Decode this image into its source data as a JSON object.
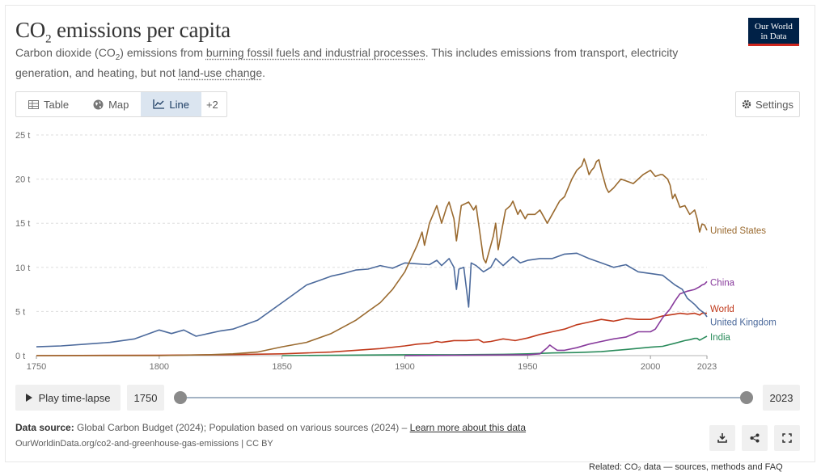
{
  "header": {
    "title_main": "CO",
    "title_sub": "2",
    "title_rest": " emissions per capita",
    "subtitle": {
      "p1": "Carbon dioxide (CO",
      "p1_sub": "2",
      "p1_end": ") emissions from ",
      "link1": "burning fossil fuels and industrial processes",
      "p2": ". This includes emissions from transport, electricity generation, and heating, but not ",
      "link2": "land-use change",
      "p3": "."
    },
    "logo_line1": "Our World",
    "logo_line2": "in Data"
  },
  "tabs": [
    {
      "label": "Table",
      "icon": "table-icon"
    },
    {
      "label": "Map",
      "icon": "globe-icon"
    },
    {
      "label": "Line",
      "icon": "line-chart-icon"
    },
    {
      "label": "+2",
      "icon": ""
    }
  ],
  "active_tab": "Line",
  "settings_label": "Settings",
  "timeline": {
    "play_label": "Play time-lapse",
    "start_year": "1750",
    "end_year": "2023"
  },
  "footer": {
    "source_label": "Data source:",
    "source_text": " Global Carbon Budget (2024); Population based on various sources (2024) – ",
    "learn_more": "Learn more about this data",
    "url": "OurWorldinData.org/co2-and-greenhouse-gas-emissions | CC BY",
    "related": "Related: CO₂ data — sources, methods and FAQ"
  },
  "colors": {
    "united_states": "#9a6a2f",
    "united_kingdom": "#4c6a9c",
    "china": "#883b9c",
    "world": "#c0391b",
    "india": "#2a8b5b",
    "grid": "#dddddd",
    "axis_text": "#6e6e6e"
  },
  "chart_data": {
    "type": "line",
    "title": "CO₂ emissions per capita",
    "ylabel": "",
    "xlabel": "",
    "xlim": [
      1750,
      2023
    ],
    "ylim": [
      0,
      25
    ],
    "x_ticks": [
      "1750",
      "1800",
      "1850",
      "1900",
      "1950",
      "2000",
      "2023"
    ],
    "y_ticks": [
      "0 t",
      "5 t",
      "10 t",
      "15 t",
      "20 t",
      "25 t"
    ],
    "y_tick_values": [
      0,
      5,
      10,
      15,
      20,
      25
    ],
    "grid": true,
    "legend": "line-end labels",
    "series": [
      {
        "name": "United States",
        "color_key": "united_states",
        "x": [
          1750,
          1800,
          1820,
          1830,
          1840,
          1850,
          1860,
          1870,
          1880,
          1885,
          1890,
          1895,
          1900,
          1905,
          1907,
          1908,
          1910,
          1913,
          1915,
          1917,
          1918,
          1920,
          1921,
          1923,
          1926,
          1928,
          1929,
          1930,
          1932,
          1933,
          1936,
          1937,
          1938,
          1941,
          1943,
          1944,
          1946,
          1947,
          1949,
          1950,
          1953,
          1955,
          1957,
          1958,
          1960,
          1963,
          1965,
          1968,
          1970,
          1972,
          1973,
          1974,
          1975,
          1976,
          1977,
          1978,
          1979,
          1980,
          1982,
          1983,
          1985,
          1988,
          1990,
          1993,
          1995,
          1997,
          2000,
          2002,
          2004,
          2005,
          2007,
          2008,
          2009,
          2010,
          2012,
          2014,
          2016,
          2018,
          2019,
          2020,
          2021,
          2022,
          2023
        ],
        "y": [
          0.0,
          0.0,
          0.1,
          0.2,
          0.4,
          1.0,
          1.5,
          2.5,
          4.0,
          5.0,
          6.0,
          7.5,
          9.5,
          12.5,
          14.0,
          12.5,
          15.0,
          17.0,
          15.0,
          16.8,
          17.4,
          15.5,
          13.0,
          17.0,
          17.4,
          16.5,
          17.0,
          15.0,
          11.0,
          10.5,
          13.5,
          15.0,
          12.0,
          16.5,
          17.0,
          17.5,
          16.0,
          16.5,
          15.5,
          16.0,
          16.0,
          16.5,
          15.5,
          15.0,
          16.0,
          17.5,
          18.0,
          20.0,
          21.0,
          21.5,
          22.3,
          21.5,
          20.5,
          21.0,
          21.3,
          22.0,
          22.2,
          21.0,
          19.0,
          18.5,
          19.0,
          20.0,
          19.8,
          19.5,
          20.0,
          20.5,
          21.0,
          20.3,
          20.5,
          20.5,
          20.0,
          19.3,
          17.8,
          18.3,
          16.8,
          17.0,
          16.0,
          16.5,
          15.5,
          14.0,
          14.9,
          14.8,
          14.2
        ]
      },
      {
        "name": "United Kingdom",
        "color_key": "united_kingdom",
        "x": [
          1750,
          1760,
          1770,
          1780,
          1790,
          1800,
          1805,
          1810,
          1815,
          1820,
          1825,
          1830,
          1835,
          1840,
          1845,
          1850,
          1855,
          1860,
          1865,
          1870,
          1875,
          1880,
          1885,
          1890,
          1895,
          1900,
          1905,
          1910,
          1913,
          1915,
          1918,
          1920,
          1921,
          1922,
          1924,
          1926,
          1927,
          1929,
          1932,
          1935,
          1937,
          1940,
          1944,
          1947,
          1950,
          1955,
          1960,
          1965,
          1970,
          1975,
          1980,
          1985,
          1990,
          1995,
          2000,
          2005,
          2010,
          2013,
          2015,
          2018,
          2020,
          2021,
          2022,
          2023
        ],
        "y": [
          1.0,
          1.1,
          1.3,
          1.5,
          1.9,
          2.9,
          2.5,
          2.9,
          2.2,
          2.5,
          2.8,
          3.0,
          3.5,
          4.0,
          5.0,
          6.0,
          7.0,
          8.0,
          8.5,
          9.0,
          9.3,
          9.7,
          9.8,
          10.2,
          9.9,
          10.5,
          10.4,
          10.3,
          10.8,
          10.2,
          11.0,
          10.0,
          7.5,
          9.8,
          10.0,
          5.5,
          10.5,
          10.2,
          9.5,
          10.0,
          11.0,
          10.2,
          11.2,
          10.5,
          10.8,
          11.0,
          11.0,
          11.5,
          11.6,
          11.0,
          10.5,
          10.0,
          10.3,
          9.5,
          9.3,
          9.1,
          8.0,
          7.5,
          6.5,
          5.8,
          5.2,
          5.0,
          4.8,
          4.4
        ]
      },
      {
        "name": "China",
        "color_key": "china",
        "x": [
          1900,
          1950,
          1955,
          1958,
          1959,
          1960,
          1962,
          1965,
          1970,
          1975,
          1980,
          1985,
          1990,
          1995,
          2000,
          2002,
          2005,
          2008,
          2010,
          2012,
          2015,
          2018,
          2020,
          2021,
          2022,
          2023
        ],
        "y": [
          0.0,
          0.1,
          0.2,
          0.9,
          1.2,
          1.0,
          0.6,
          0.6,
          0.9,
          1.3,
          1.6,
          1.9,
          2.1,
          2.7,
          2.7,
          3.0,
          4.3,
          5.3,
          6.2,
          7.0,
          7.3,
          7.5,
          7.8,
          8.0,
          8.1,
          8.4
        ]
      },
      {
        "name": "World",
        "color_key": "world",
        "x": [
          1750,
          1800,
          1825,
          1850,
          1860,
          1870,
          1880,
          1890,
          1900,
          1905,
          1910,
          1913,
          1915,
          1920,
          1925,
          1930,
          1932,
          1935,
          1940,
          1945,
          1950,
          1955,
          1960,
          1965,
          1970,
          1975,
          1980,
          1985,
          1990,
          1995,
          2000,
          2005,
          2010,
          2012,
          2015,
          2018,
          2020,
          2021,
          2022,
          2023
        ],
        "y": [
          0.0,
          0.05,
          0.1,
          0.2,
          0.3,
          0.4,
          0.6,
          0.8,
          1.1,
          1.3,
          1.4,
          1.6,
          1.5,
          1.7,
          1.7,
          1.8,
          1.5,
          1.6,
          1.9,
          1.7,
          2.0,
          2.4,
          2.7,
          3.0,
          3.5,
          3.8,
          4.1,
          3.9,
          4.2,
          4.1,
          4.1,
          4.5,
          4.7,
          4.8,
          4.7,
          4.8,
          4.6,
          4.8,
          4.8,
          4.8
        ]
      },
      {
        "name": "India",
        "color_key": "india",
        "x": [
          1850,
          1900,
          1920,
          1940,
          1950,
          1960,
          1970,
          1980,
          1990,
          2000,
          2005,
          2010,
          2014,
          2016,
          2018,
          2019,
          2020,
          2021,
          2022,
          2023
        ],
        "y": [
          0.0,
          0.1,
          0.1,
          0.15,
          0.2,
          0.3,
          0.35,
          0.45,
          0.7,
          0.95,
          1.05,
          1.4,
          1.7,
          1.8,
          1.95,
          1.95,
          1.75,
          1.9,
          2.05,
          2.2
        ]
      }
    ],
    "end_labels": [
      {
        "name": "United States",
        "color_key": "united_states",
        "label_value": 14.2
      },
      {
        "name": "China",
        "color_key": "china",
        "label_value": 8.3
      },
      {
        "name": "World",
        "color_key": "world",
        "label_value": 5.3
      },
      {
        "name": "United Kingdom",
        "color_key": "united_kingdom",
        "label_value": 3.8
      },
      {
        "name": "India",
        "color_key": "india",
        "label_value": 2.1
      }
    ]
  }
}
